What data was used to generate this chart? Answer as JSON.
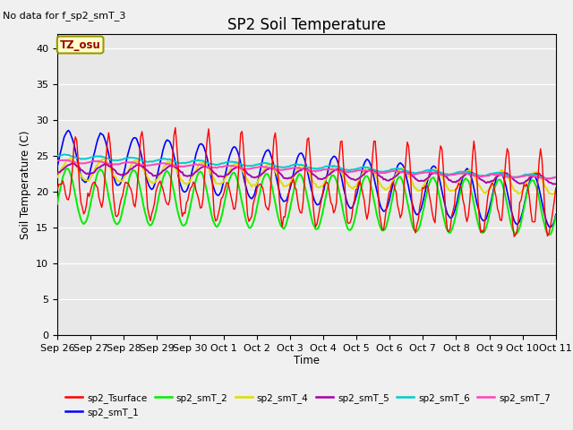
{
  "title": "SP2 Soil Temperature",
  "subtitle": "No data for f_sp2_smT_3",
  "ylabel": "Soil Temperature (C)",
  "xlabel": "Time",
  "tz_label": "TZ_osu",
  "ylim": [
    0,
    42
  ],
  "yticks": [
    0,
    5,
    10,
    15,
    20,
    25,
    30,
    35,
    40
  ],
  "background_color": "#e8e8e8",
  "fig_bg_color": "#f0f0f0",
  "series": {
    "sp2_Tsurface": {
      "color": "#ff0000",
      "lw": 1.0,
      "zorder": 5
    },
    "sp2_smT_1": {
      "color": "#0000ff",
      "lw": 1.2,
      "zorder": 4
    },
    "sp2_smT_2": {
      "color": "#00ee00",
      "lw": 1.4,
      "zorder": 4
    },
    "sp2_smT_4": {
      "color": "#dddd00",
      "lw": 1.4,
      "zorder": 4
    },
    "sp2_smT_5": {
      "color": "#aa00aa",
      "lw": 1.4,
      "zorder": 4
    },
    "sp2_smT_6": {
      "color": "#00cccc",
      "lw": 1.4,
      "zorder": 4
    },
    "sp2_smT_7": {
      "color": "#ff44bb",
      "lw": 1.4,
      "zorder": 4
    }
  },
  "xtick_labels": [
    "Sep 26",
    "Sep 27",
    "Sep 28",
    "Sep 29",
    "Sep 30",
    "Oct 1",
    "Oct 2",
    "Oct 3",
    "Oct 4",
    "Oct 5",
    "Oct 6",
    "Oct 7",
    "Oct 8",
    "Oct 9",
    "Oct 10",
    "Oct 11"
  ],
  "n_days": 15,
  "pts_per_day": 24
}
